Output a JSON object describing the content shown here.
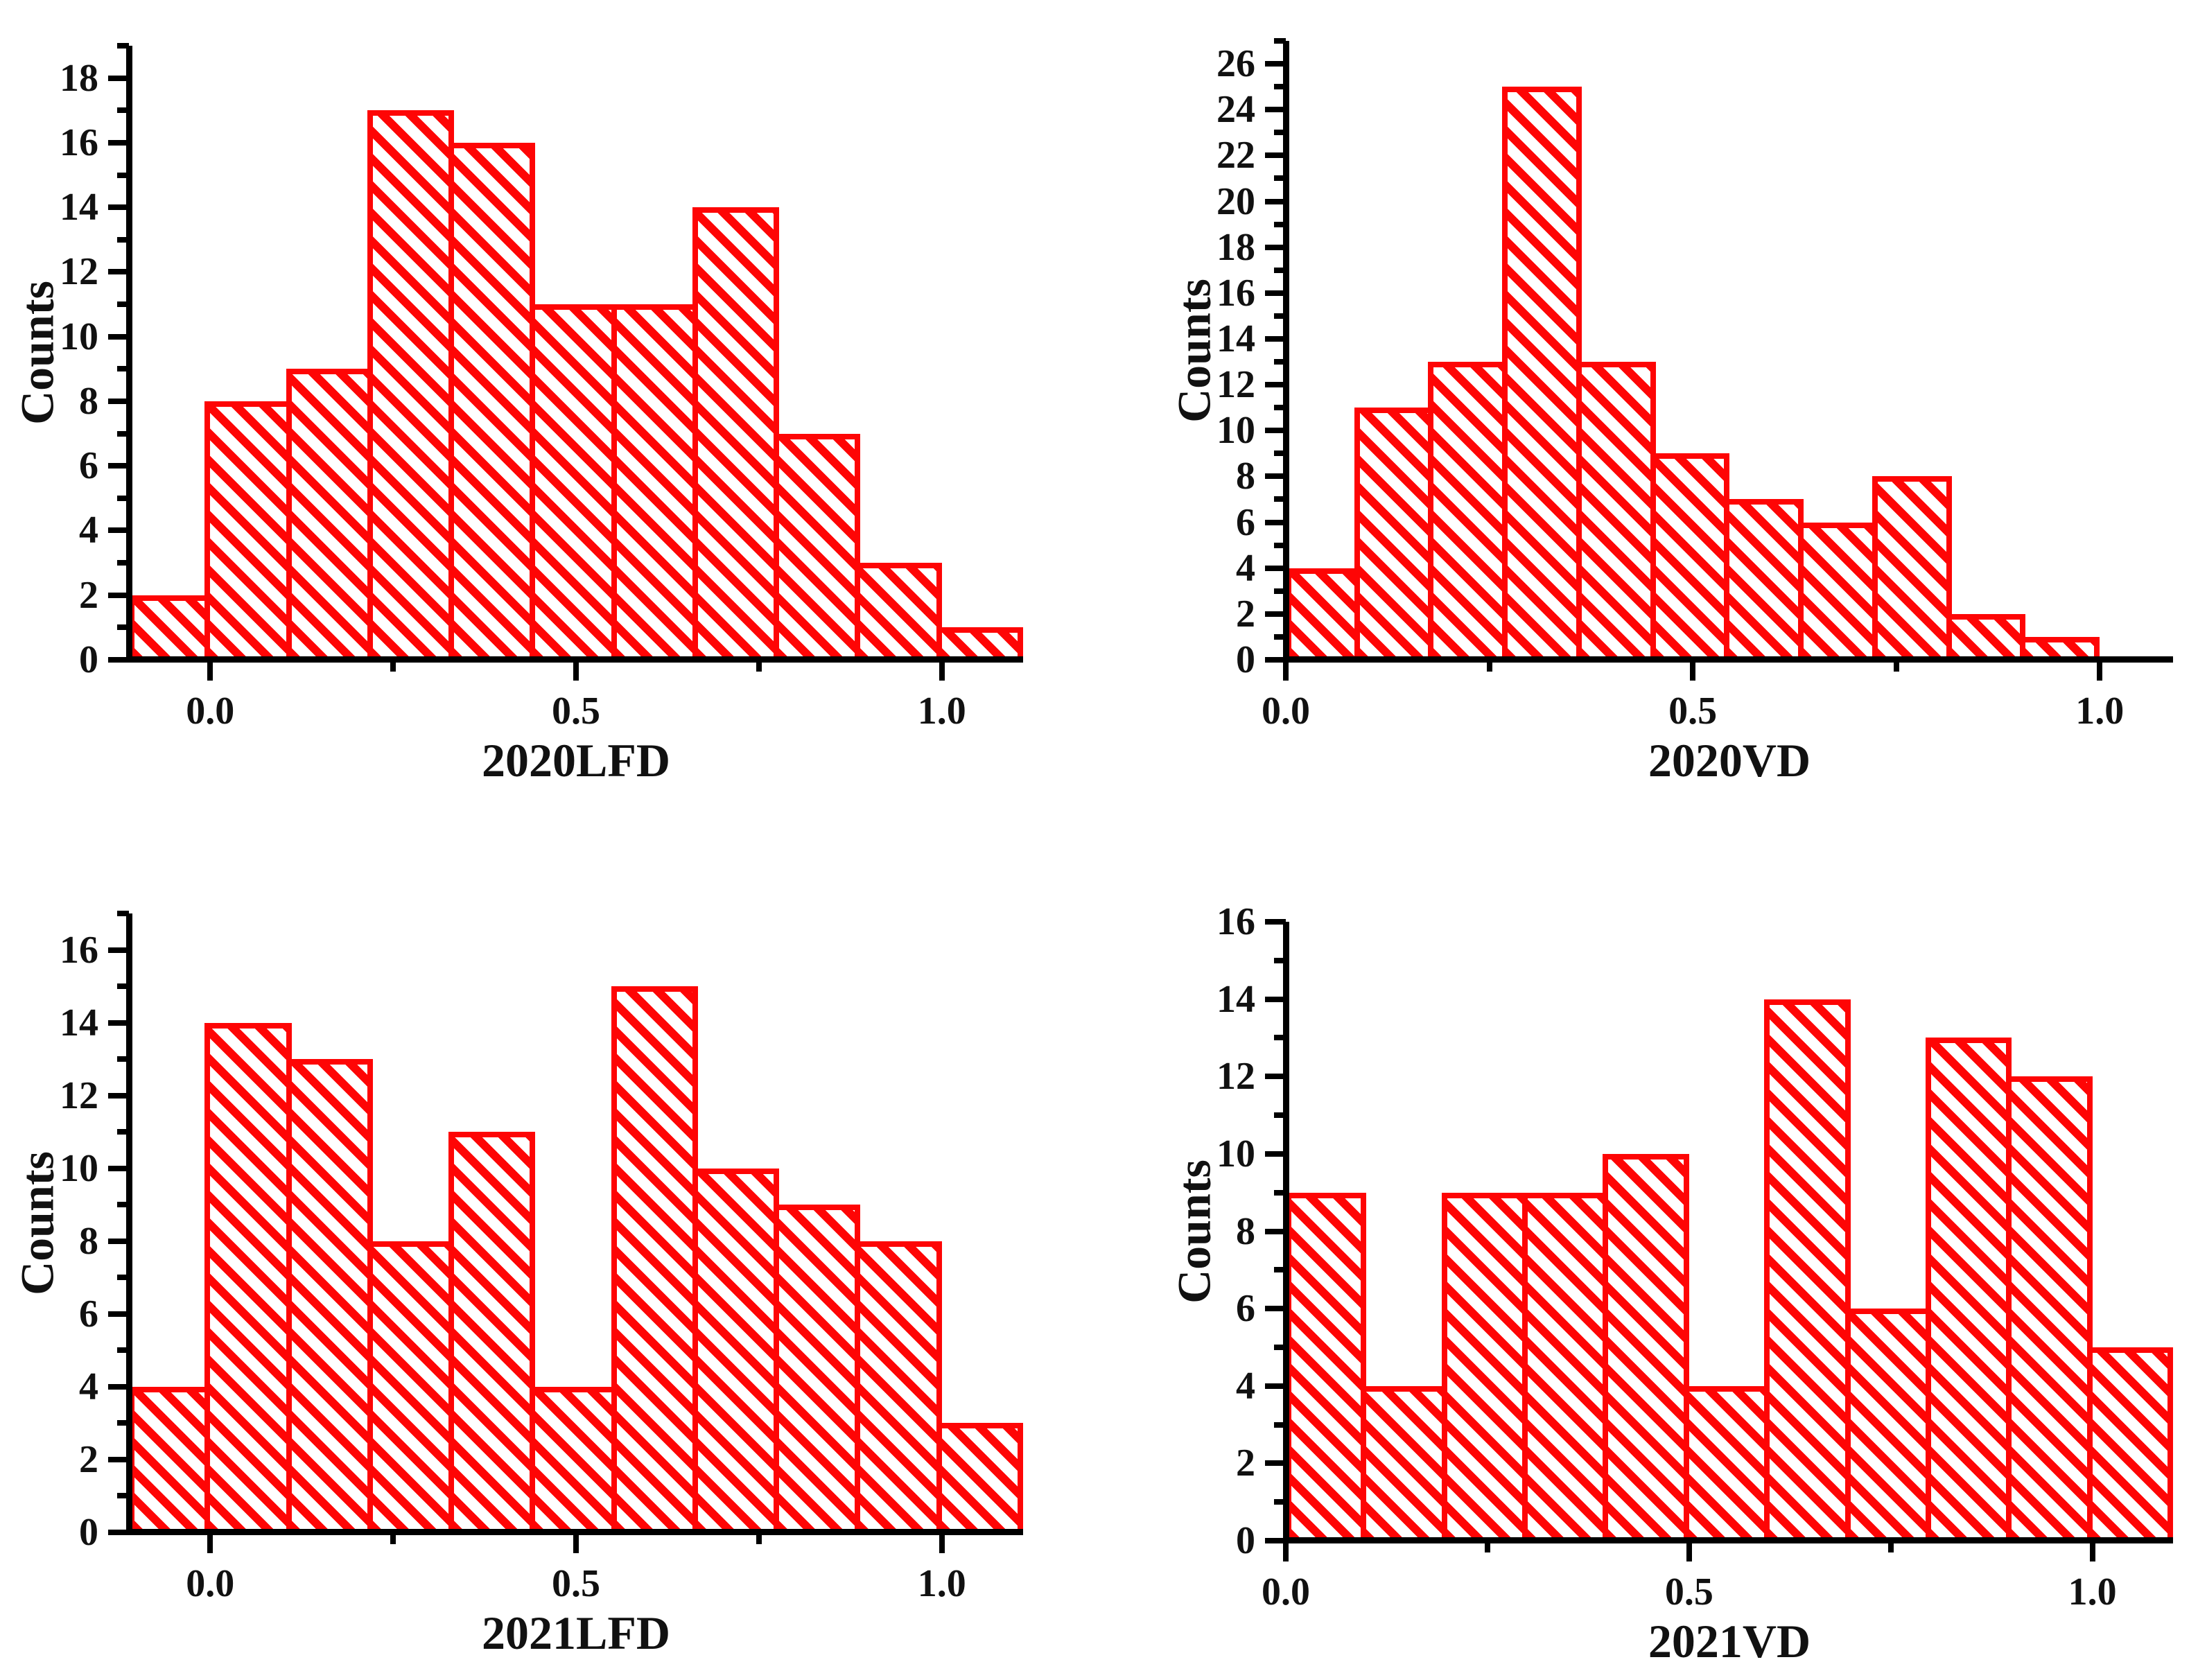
{
  "page": {
    "background": "#ffffff",
    "layout": "2x2 grid of histograms"
  },
  "style": {
    "bar_color": "#fe0505",
    "hatch_direction": "backslash-diagonal",
    "axis_color": "#000000",
    "text_color": "#111111"
  },
  "chart_data": [
    {
      "type": "bar",
      "subtype": "histogram",
      "panel": "top-left",
      "xlabel": "2020LFD",
      "ylabel": "Counts",
      "counts": [
        2,
        8,
        9,
        17,
        16,
        11,
        11,
        14,
        7,
        3,
        1
      ],
      "bin_start": -0.1111,
      "bin_width": 0.1111,
      "xlim": [
        -0.1111,
        1.1111
      ],
      "ylim": [
        0,
        19
      ],
      "x_ticks": [
        {
          "value": 0.0,
          "label": "0.0"
        },
        {
          "value": 0.5,
          "label": "0.5"
        },
        {
          "value": 1.0,
          "label": "1.0"
        }
      ],
      "x_minor_ticks": [
        0.25,
        0.75
      ],
      "y_tick_step": 2,
      "y_minor_step": 1,
      "y_label_max": 18,
      "y_tick_labels": [
        "0",
        "2",
        "4",
        "6",
        "8",
        "10",
        "12",
        "14",
        "16",
        "18"
      ],
      "grid": false,
      "legend": null
    },
    {
      "type": "bar",
      "subtype": "histogram",
      "panel": "top-right",
      "xlabel": "2020VD",
      "ylabel": "Counts",
      "counts": [
        4,
        11,
        13,
        25,
        13,
        9,
        7,
        6,
        8,
        2,
        1
      ],
      "bin_start": 0.0,
      "bin_width": 0.0909,
      "xlim": [
        0,
        1.09
      ],
      "ylim": [
        0,
        27
      ],
      "x_ticks": [
        {
          "value": 0.0,
          "label": "0.0"
        },
        {
          "value": 0.5,
          "label": "0.5"
        },
        {
          "value": 1.0,
          "label": "1.0"
        }
      ],
      "x_minor_ticks": [
        0.25,
        0.75
      ],
      "y_tick_step": 2,
      "y_minor_step": 1,
      "y_label_max": 26,
      "y_tick_labels": [
        "0",
        "2",
        "4",
        "6",
        "8",
        "10",
        "12",
        "14",
        "16",
        "18",
        "20",
        "22",
        "24",
        "26"
      ],
      "grid": false,
      "legend": null
    },
    {
      "type": "bar",
      "subtype": "histogram",
      "panel": "bottom-left",
      "xlabel": "2021LFD",
      "ylabel": "Counts",
      "counts": [
        4,
        14,
        13,
        8,
        11,
        4,
        15,
        10,
        9,
        8,
        3
      ],
      "bin_start": -0.1111,
      "bin_width": 0.1111,
      "xlim": [
        -0.1111,
        1.1111
      ],
      "ylim": [
        0,
        17
      ],
      "x_ticks": [
        {
          "value": 0.0,
          "label": "0.0"
        },
        {
          "value": 0.5,
          "label": "0.5"
        },
        {
          "value": 1.0,
          "label": "1.0"
        }
      ],
      "x_minor_ticks": [
        0.25,
        0.75
      ],
      "y_tick_step": 2,
      "y_minor_step": 1,
      "y_label_max": 16,
      "y_tick_labels": [
        "0",
        "2",
        "4",
        "6",
        "8",
        "10",
        "12",
        "14",
        "16"
      ],
      "grid": false,
      "legend": null
    },
    {
      "type": "bar",
      "subtype": "histogram",
      "panel": "bottom-right",
      "xlabel": "2021VD",
      "ylabel": "Counts",
      "counts": [
        9,
        4,
        9,
        9,
        10,
        4,
        14,
        6,
        13,
        12,
        5
      ],
      "bin_start": 0.0,
      "bin_width": 0.1,
      "xlim": [
        0,
        1.1
      ],
      "ylim": [
        0,
        16
      ],
      "x_ticks": [
        {
          "value": 0.0,
          "label": "0.0"
        },
        {
          "value": 0.5,
          "label": "0.5"
        },
        {
          "value": 1.0,
          "label": "1.0"
        }
      ],
      "x_minor_ticks": [
        0.25,
        0.75
      ],
      "y_tick_step": 2,
      "y_minor_step": 1,
      "y_label_max": 16,
      "y_tick_labels": [
        "0",
        "2",
        "4",
        "6",
        "8",
        "10",
        "12",
        "14",
        "16"
      ],
      "grid": false,
      "legend": null
    }
  ]
}
